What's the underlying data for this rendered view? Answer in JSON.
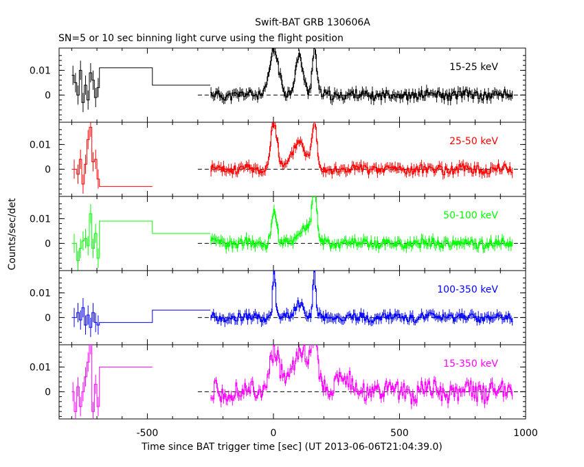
{
  "chart_data": {
    "type": "line",
    "title": "Swift-BAT GRB 130606A",
    "subtitle": "SN=5 or 10 sec binning light curve using the flight position",
    "xlabel": "Time since BAT trigger time [sec] (UT 2013-06-06T21:04:39.0)",
    "ylabel": "Counts/sec/det",
    "xlim": [
      -850,
      1000
    ],
    "ylim": [
      -0.011,
      0.019
    ],
    "x_ticks": [
      "-500",
      "0",
      "500",
      "1000"
    ],
    "x_tick_values": [
      -500,
      0,
      500,
      1000
    ],
    "y_ticks": [
      "0.01",
      "0"
    ],
    "y_tick_values": [
      0.01,
      0
    ],
    "grid": false,
    "dashed_zero_line_from": -300,
    "panels": [
      {
        "name": "15-25 keV",
        "color": "#000000",
        "pre_bins": [
          [
            -800,
            0.008
          ],
          [
            -790,
            0.005
          ],
          [
            -780,
            0.0
          ],
          [
            -770,
            0.01
          ],
          [
            -760,
            -0.003
          ],
          [
            -750,
            0.004
          ],
          [
            -740,
            -0.002
          ],
          [
            -730,
            0.009
          ],
          [
            -720,
            0.006
          ],
          [
            -710,
            -0.001
          ],
          [
            -700,
            0.003
          ],
          [
            -690,
            0.011
          ],
          [
            -480,
            0.004
          ]
        ],
        "pre_end": -250,
        "peaks": [
          [
            0,
            0.018,
            25
          ],
          [
            100,
            0.016,
            22
          ],
          [
            160,
            0.019,
            12
          ]
        ],
        "noise": 0.0018,
        "seed": 11
      },
      {
        "name": "25-50 keV",
        "color": "#ff0000",
        "pre_bins": [
          [
            -800,
            0.0
          ],
          [
            -780,
            -0.002
          ],
          [
            -770,
            0.004
          ],
          [
            -760,
            -0.006
          ],
          [
            -750,
            0.002
          ],
          [
            -740,
            0.012
          ],
          [
            -730,
            0.017
          ],
          [
            -720,
            0.003
          ],
          [
            -710,
            0.004
          ],
          [
            -700,
            -0.004
          ],
          [
            -690,
            -0.007
          ]
        ],
        "pre_end": -480,
        "peaks": [
          [
            0,
            0.019,
            18
          ],
          [
            100,
            0.012,
            35
          ],
          [
            160,
            0.019,
            14
          ]
        ],
        "noise": 0.0018,
        "seed": 23
      },
      {
        "name": "50-100 keV",
        "color": "#00ff00",
        "pre_bins": [
          [
            -800,
            0.0
          ],
          [
            -780,
            -0.007
          ],
          [
            -770,
            -0.002
          ],
          [
            -760,
            0.001
          ],
          [
            -750,
            0.002
          ],
          [
            -740,
            -0.001
          ],
          [
            -730,
            0.012
          ],
          [
            -720,
            -0.002
          ],
          [
            -710,
            0.004
          ],
          [
            -700,
            -0.006
          ],
          [
            -690,
            0.009
          ],
          [
            -480,
            0.004
          ]
        ],
        "pre_end": -250,
        "peaks": [
          [
            0,
            0.014,
            14
          ],
          [
            120,
            0.007,
            35
          ],
          [
            160,
            0.019,
            14
          ]
        ],
        "noise": 0.0018,
        "seed": 37
      },
      {
        "name": "100-350 keV",
        "color": "#0000ff",
        "pre_bins": [
          [
            -800,
            0.0
          ],
          [
            -780,
            0.002
          ],
          [
            -770,
            -0.001
          ],
          [
            -760,
            0.004
          ],
          [
            -750,
            -0.003
          ],
          [
            -740,
            0.001
          ],
          [
            -730,
            -0.004
          ],
          [
            -720,
            0.002
          ],
          [
            -710,
            -0.002
          ],
          [
            -700,
            -0.003
          ],
          [
            -690,
            -0.002
          ],
          [
            -480,
            0.003
          ]
        ],
        "pre_end": -250,
        "peaks": [
          [
            0,
            0.019,
            8
          ],
          [
            100,
            0.006,
            25
          ],
          [
            160,
            0.019,
            8
          ]
        ],
        "noise": 0.0016,
        "seed": 53
      },
      {
        "name": "15-350 keV",
        "color": "#ff00ff",
        "pre_bins": [
          [
            -800,
            0.0
          ],
          [
            -790,
            -0.008
          ],
          [
            -780,
            0.002
          ],
          [
            -770,
            -0.006
          ],
          [
            -760,
            0.0
          ],
          [
            -750,
            0.006
          ],
          [
            -740,
            0.012
          ],
          [
            -730,
            0.019
          ],
          [
            -720,
            -0.008
          ],
          [
            -710,
            0.003
          ],
          [
            -700,
            -0.006
          ],
          [
            -690,
            0.01
          ]
        ],
        "pre_end": -480,
        "peaks": [
          [
            0,
            0.016,
            30
          ],
          [
            110,
            0.019,
            40
          ],
          [
            160,
            0.019,
            18
          ],
          [
            270,
            0.008,
            40
          ]
        ],
        "noise": 0.004,
        "seed": 71
      }
    ],
    "post_start": -250,
    "post_end": 950,
    "bin_width": 5
  }
}
